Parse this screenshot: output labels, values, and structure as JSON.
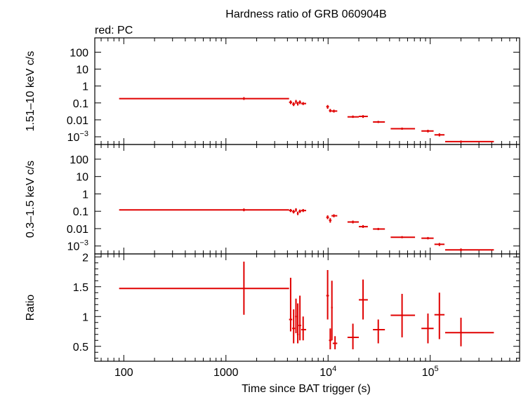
{
  "chart_data": {
    "type": "scatter",
    "title": "Hardness ratio of GRB 060904B",
    "subtitle": "red: PC",
    "xlabel": "Time since BAT trigger (s)",
    "x_scale": "log",
    "xlim": [
      52,
      750000
    ],
    "x_major_ticks": [
      {
        "v": 100,
        "t": "100"
      },
      {
        "v": 1000,
        "t": "1000"
      },
      {
        "v": 10000,
        "t": "10",
        "sup": "4"
      },
      {
        "v": 100000,
        "t": "10",
        "sup": "5"
      }
    ],
    "color": "#e00000",
    "panels": [
      {
        "name": "hard",
        "ylabel": "1.51–10 keV c/s",
        "y_scale": "log",
        "ylim": [
          0.00035,
          700
        ],
        "y_ticks": [
          {
            "v": 0.001,
            "t": "10",
            "sup": "−3"
          },
          {
            "v": 0.01,
            "t": "0.01"
          },
          {
            "v": 0.1,
            "t": "0.1"
          },
          {
            "v": 1,
            "t": "1"
          },
          {
            "v": 10,
            "t": "10"
          },
          {
            "v": 100,
            "t": "100"
          }
        ],
        "points": [
          {
            "x": 1500,
            "xlo": 90,
            "xhi": 4150,
            "y": 0.18,
            "ylo": 0.15,
            "yhi": 0.22
          },
          {
            "x": 4300,
            "xlo": 4150,
            "xhi": 4450,
            "y": 0.11,
            "ylo": 0.085,
            "yhi": 0.14
          },
          {
            "x": 4600,
            "xlo": 4450,
            "xhi": 4750,
            "y": 0.085,
            "ylo": 0.065,
            "yhi": 0.11
          },
          {
            "x": 4850,
            "xlo": 4750,
            "xhi": 4950,
            "y": 0.12,
            "ylo": 0.09,
            "yhi": 0.15
          },
          {
            "x": 5050,
            "xlo": 4950,
            "xhi": 5150,
            "y": 0.09,
            "ylo": 0.07,
            "yhi": 0.115
          },
          {
            "x": 5300,
            "xlo": 5150,
            "xhi": 5450,
            "y": 0.11,
            "ylo": 0.085,
            "yhi": 0.14
          },
          {
            "x": 5700,
            "xlo": 5450,
            "xhi": 6100,
            "y": 0.092,
            "ylo": 0.075,
            "yhi": 0.112
          },
          {
            "x": 9900,
            "xlo": 9600,
            "xhi": 10200,
            "y": 0.06,
            "ylo": 0.045,
            "yhi": 0.075
          },
          {
            "x": 10500,
            "xlo": 10200,
            "xhi": 10800,
            "y": 0.035,
            "ylo": 0.028,
            "yhi": 0.044
          },
          {
            "x": 11400,
            "xlo": 10800,
            "xhi": 12300,
            "y": 0.033,
            "ylo": 0.027,
            "yhi": 0.04
          },
          {
            "x": 17500,
            "xlo": 15500,
            "xhi": 20000,
            "y": 0.015,
            "ylo": 0.013,
            "yhi": 0.018
          },
          {
            "x": 22000,
            "xlo": 20000,
            "xhi": 24500,
            "y": 0.016,
            "ylo": 0.013,
            "yhi": 0.019
          },
          {
            "x": 31000,
            "xlo": 27500,
            "xhi": 36000,
            "y": 0.0075,
            "ylo": 0.0065,
            "yhi": 0.0087
          },
          {
            "x": 53000,
            "xlo": 41000,
            "xhi": 71000,
            "y": 0.003,
            "ylo": 0.0026,
            "yhi": 0.0035
          },
          {
            "x": 95000,
            "xlo": 82000,
            "xhi": 108000,
            "y": 0.0022,
            "ylo": 0.0018,
            "yhi": 0.0026
          },
          {
            "x": 123000,
            "xlo": 110000,
            "xhi": 138000,
            "y": 0.0013,
            "ylo": 0.00105,
            "yhi": 0.0016
          },
          {
            "x": 200000,
            "xlo": 140000,
            "xhi": 420000,
            "y": 0.00052,
            "ylo": 0.00044,
            "yhi": 0.0006
          }
        ]
      },
      {
        "name": "soft",
        "ylabel": "0.3–1.5 keV c/s",
        "y_scale": "log",
        "ylim": [
          0.00035,
          700
        ],
        "y_ticks": [
          {
            "v": 0.001,
            "t": "10",
            "sup": "−3"
          },
          {
            "v": 0.01,
            "t": "0.01"
          },
          {
            "v": 0.1,
            "t": "0.1"
          },
          {
            "v": 1,
            "t": "1"
          },
          {
            "v": 10,
            "t": "10"
          },
          {
            "v": 100,
            "t": "100"
          }
        ],
        "points": [
          {
            "x": 1500,
            "xlo": 90,
            "xhi": 4150,
            "y": 0.12,
            "ylo": 0.1,
            "yhi": 0.145
          },
          {
            "x": 4300,
            "xlo": 4150,
            "xhi": 4450,
            "y": 0.11,
            "ylo": 0.09,
            "yhi": 0.135
          },
          {
            "x": 4600,
            "xlo": 4450,
            "xhi": 4750,
            "y": 0.095,
            "ylo": 0.075,
            "yhi": 0.12
          },
          {
            "x": 4850,
            "xlo": 4750,
            "xhi": 4950,
            "y": 0.12,
            "ylo": 0.095,
            "yhi": 0.15
          },
          {
            "x": 5050,
            "xlo": 4950,
            "xhi": 5150,
            "y": 0.075,
            "ylo": 0.06,
            "yhi": 0.095
          },
          {
            "x": 5300,
            "xlo": 5150,
            "xhi": 5450,
            "y": 0.1,
            "ylo": 0.08,
            "yhi": 0.125
          },
          {
            "x": 5700,
            "xlo": 5450,
            "xhi": 6100,
            "y": 0.11,
            "ylo": 0.09,
            "yhi": 0.135
          },
          {
            "x": 9900,
            "xlo": 9600,
            "xhi": 10200,
            "y": 0.045,
            "ylo": 0.035,
            "yhi": 0.058
          },
          {
            "x": 10500,
            "xlo": 10200,
            "xhi": 10800,
            "y": 0.03,
            "ylo": 0.022,
            "yhi": 0.04
          },
          {
            "x": 11400,
            "xlo": 10800,
            "xhi": 12300,
            "y": 0.055,
            "ylo": 0.045,
            "yhi": 0.067
          },
          {
            "x": 17500,
            "xlo": 15500,
            "xhi": 20000,
            "y": 0.024,
            "ylo": 0.02,
            "yhi": 0.029
          },
          {
            "x": 22000,
            "xlo": 20000,
            "xhi": 24500,
            "y": 0.013,
            "ylo": 0.011,
            "yhi": 0.016
          },
          {
            "x": 31000,
            "xlo": 27500,
            "xhi": 36000,
            "y": 0.0095,
            "ylo": 0.0082,
            "yhi": 0.011
          },
          {
            "x": 53000,
            "xlo": 41000,
            "xhi": 71000,
            "y": 0.0032,
            "ylo": 0.0028,
            "yhi": 0.0037
          },
          {
            "x": 95000,
            "xlo": 82000,
            "xhi": 108000,
            "y": 0.0028,
            "ylo": 0.0024,
            "yhi": 0.0033
          },
          {
            "x": 123000,
            "xlo": 110000,
            "xhi": 138000,
            "y": 0.00125,
            "ylo": 0.001,
            "yhi": 0.0015
          },
          {
            "x": 200000,
            "xlo": 140000,
            "xhi": 420000,
            "y": 0.0006,
            "ylo": 0.0005,
            "yhi": 0.00072
          }
        ]
      },
      {
        "name": "ratio",
        "ylabel": "Ratio",
        "y_scale": "linear",
        "ylim": [
          0.25,
          2.05
        ],
        "y_ticks": [
          {
            "v": 0.5,
            "t": "0.5"
          },
          {
            "v": 1,
            "t": "1"
          },
          {
            "v": 1.5,
            "t": "1.5"
          },
          {
            "v": 2,
            "t": "2"
          }
        ],
        "points": [
          {
            "x": 1500,
            "xlo": 90,
            "xhi": 4150,
            "y": 1.47,
            "ylo": 1.03,
            "yhi": 1.92
          },
          {
            "x": 4300,
            "xlo": 4150,
            "xhi": 4450,
            "y": 0.95,
            "ylo": 0.75,
            "yhi": 1.65
          },
          {
            "x": 4600,
            "xlo": 4450,
            "xhi": 4750,
            "y": 0.8,
            "ylo": 0.55,
            "yhi": 1.12
          },
          {
            "x": 4850,
            "xlo": 4750,
            "xhi": 4950,
            "y": 1.0,
            "ylo": 0.72,
            "yhi": 1.3
          },
          {
            "x": 5050,
            "xlo": 4950,
            "xhi": 5150,
            "y": 0.7,
            "ylo": 0.55,
            "yhi": 1.22
          },
          {
            "x": 5300,
            "xlo": 5150,
            "xhi": 5450,
            "y": 0.85,
            "ylo": 0.6,
            "yhi": 1.35
          },
          {
            "x": 5700,
            "xlo": 5450,
            "xhi": 6100,
            "y": 0.78,
            "ylo": 0.6,
            "yhi": 1.0
          },
          {
            "x": 9900,
            "xlo": 9600,
            "xhi": 10200,
            "y": 1.35,
            "ylo": 0.95,
            "yhi": 1.78
          },
          {
            "x": 10500,
            "xlo": 10200,
            "xhi": 10800,
            "y": 0.6,
            "ylo": 0.45,
            "yhi": 0.8
          },
          {
            "x": 10900,
            "xlo": 10700,
            "xhi": 11100,
            "y": 1.15,
            "ylo": 0.6,
            "yhi": 1.6
          },
          {
            "x": 11700,
            "xlo": 11100,
            "xhi": 12300,
            "y": 0.55,
            "ylo": 0.45,
            "yhi": 0.67
          },
          {
            "x": 17500,
            "xlo": 15500,
            "xhi": 20000,
            "y": 0.65,
            "ylo": 0.45,
            "yhi": 0.88
          },
          {
            "x": 22000,
            "xlo": 20000,
            "xhi": 24500,
            "y": 1.28,
            "ylo": 0.95,
            "yhi": 1.62
          },
          {
            "x": 31000,
            "xlo": 27500,
            "xhi": 36000,
            "y": 0.78,
            "ylo": 0.55,
            "yhi": 0.95
          },
          {
            "x": 53000,
            "xlo": 41000,
            "xhi": 71000,
            "y": 1.02,
            "ylo": 0.65,
            "yhi": 1.38
          },
          {
            "x": 95000,
            "xlo": 82000,
            "xhi": 108000,
            "y": 0.8,
            "ylo": 0.55,
            "yhi": 1.05
          },
          {
            "x": 123000,
            "xlo": 110000,
            "xhi": 138000,
            "y": 1.03,
            "ylo": 0.62,
            "yhi": 1.4
          },
          {
            "x": 200000,
            "xlo": 140000,
            "xhi": 420000,
            "y": 0.73,
            "ylo": 0.5,
            "yhi": 0.98
          }
        ]
      }
    ]
  }
}
